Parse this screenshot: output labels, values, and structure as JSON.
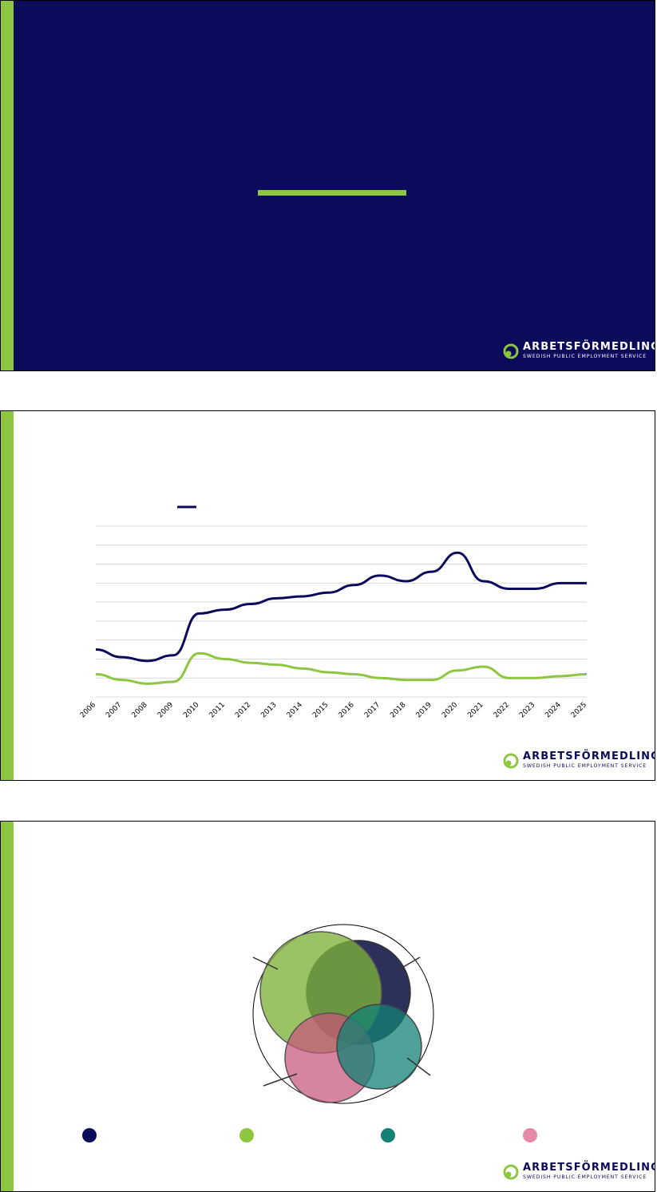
{
  "colors": {
    "navy": "#0b0a5b",
    "green": "#8dc63f",
    "olive": "#7fb23a",
    "dark_navy": "#0f1446",
    "teal": "#138275",
    "pink": "#e58aa9"
  },
  "logo": {
    "brand": "ARBETSFÖRMEDLINGEN",
    "subtitle": "SWEDISH PUBLIC EMPLOYMENT SERVICE",
    "icon": "arbetsformedlingen-logo-icon"
  },
  "chart_data": {
    "type": "line",
    "title": "",
    "xlabel": "",
    "ylabel": "",
    "x": [
      "2006",
      "2007",
      "2008",
      "2009",
      "2010",
      "2011",
      "2012",
      "2013",
      "2014",
      "2015",
      "2016",
      "2017",
      "2018",
      "2019",
      "2020",
      "2021",
      "2022",
      "2023",
      "2024",
      "2025"
    ],
    "ylim": [
      0,
      9
    ],
    "grid": true,
    "legend_position": "top-left",
    "series": [
      {
        "color": "#0b0a5b",
        "values": [
          2.5,
          2.1,
          1.9,
          2.2,
          4.4,
          4.6,
          4.9,
          5.2,
          5.3,
          5.5,
          5.9,
          6.4,
          6.1,
          6.6,
          7.6,
          6.1,
          5.7,
          5.7,
          6.0,
          6.0
        ]
      },
      {
        "color": "#8dc63f",
        "values": [
          1.2,
          0.9,
          0.7,
          0.8,
          2.3,
          2.0,
          1.8,
          1.7,
          1.5,
          1.3,
          1.2,
          1.0,
          0.9,
          0.9,
          1.4,
          1.6,
          1.0,
          1.0,
          1.1,
          1.2
        ]
      }
    ]
  },
  "venn": {
    "legend_colors": [
      "#0b0a5b",
      "#8dc63f",
      "#138275",
      "#e58aa9"
    ]
  }
}
